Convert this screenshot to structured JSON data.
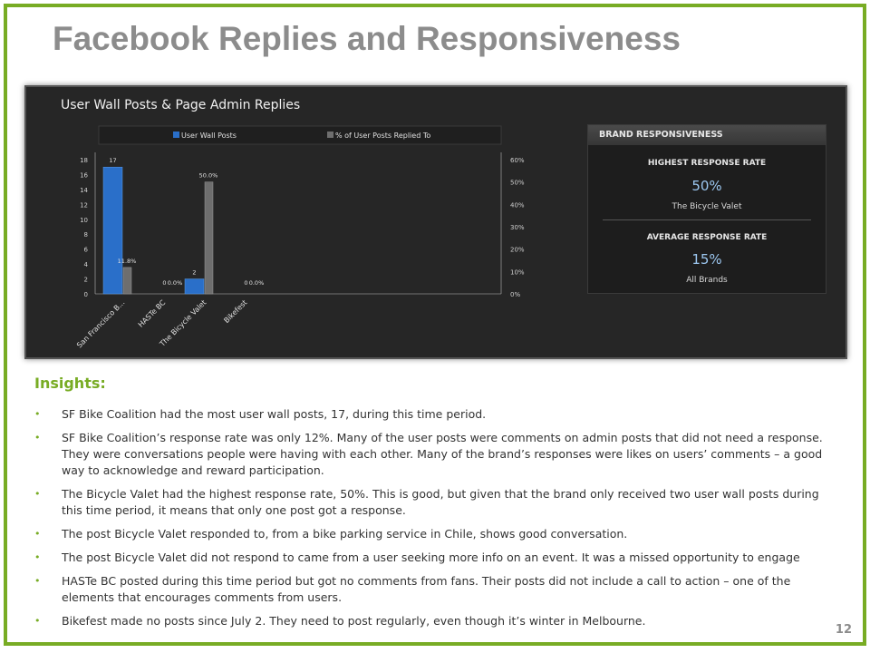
{
  "slide": {
    "title": "Facebook Replies and Responsiveness",
    "page_number": "12",
    "accent_color": "#78ac24"
  },
  "dashboard": {
    "chart_title": "User Wall Posts & Page Admin Replies"
  },
  "chart_data": {
    "type": "bar",
    "title": "User Wall Posts & Page Admin Replies",
    "categories": [
      "San Francisco B...",
      "HASTe BC",
      "The Bicycle Valet",
      "Bikefest"
    ],
    "series": [
      {
        "name": "User Wall Posts",
        "values": [
          17,
          0,
          2,
          0
        ],
        "labels": [
          "17",
          "0",
          "2",
          "0"
        ],
        "axis": "left",
        "color": "#2a6fc9"
      },
      {
        "name": "% of User Posts Replied To",
        "values": [
          11.8,
          0.0,
          50.0,
          0.0
        ],
        "labels": [
          "11.8%",
          "0.0%",
          "50.0%",
          "0.0%"
        ],
        "axis": "right",
        "color": "#6e6e6e"
      }
    ],
    "ylim": [
      0,
      18
    ],
    "yticks": [
      "0",
      "2",
      "4",
      "6",
      "8",
      "10",
      "12",
      "14",
      "16",
      "18"
    ],
    "y2lim": [
      0,
      60
    ],
    "y2ticks": [
      "0%",
      "10%",
      "20%",
      "30%",
      "40%",
      "50%",
      "60%"
    ],
    "legend_position": "top"
  },
  "brand_panel": {
    "header": "BRAND RESPONSIVENESS",
    "highest_label": "HIGHEST RESPONSE RATE",
    "highest_value": "50%",
    "highest_brand": "The Bicycle Valet",
    "average_label": "AVERAGE RESPONSE RATE",
    "average_value": "15%",
    "average_scope": "All Brands"
  },
  "insights": {
    "title": "Insights:",
    "items": [
      "SF Bike Coalition had the most user wall posts, 17, during this time period.",
      "SF Bike Coalition’s response rate was only 12%. Many of the user posts were comments on admin posts that did not need a response. They were conversations people were having with each other. Many of the brand’s responses were likes on users’ comments – a good way to acknowledge and reward participation.",
      "The Bicycle Valet had the highest response rate, 50%. This is good, but given that the brand only received two user wall posts during this time period, it means that only one post got a response.",
      "The post Bicycle Valet responded to, from a bike parking service in Chile, shows good conversation.",
      "The post Bicycle Valet did not respond to came from a user seeking more info on an event. It was a missed opportunity to engage",
      "HASTe BC posted during this time period but got no comments from fans. Their posts did not include a call to action – one of the elements that encourages comments from users.",
      "Bikefest made no posts since July 2. They need to post regularly, even though it’s winter in Melbourne."
    ]
  }
}
